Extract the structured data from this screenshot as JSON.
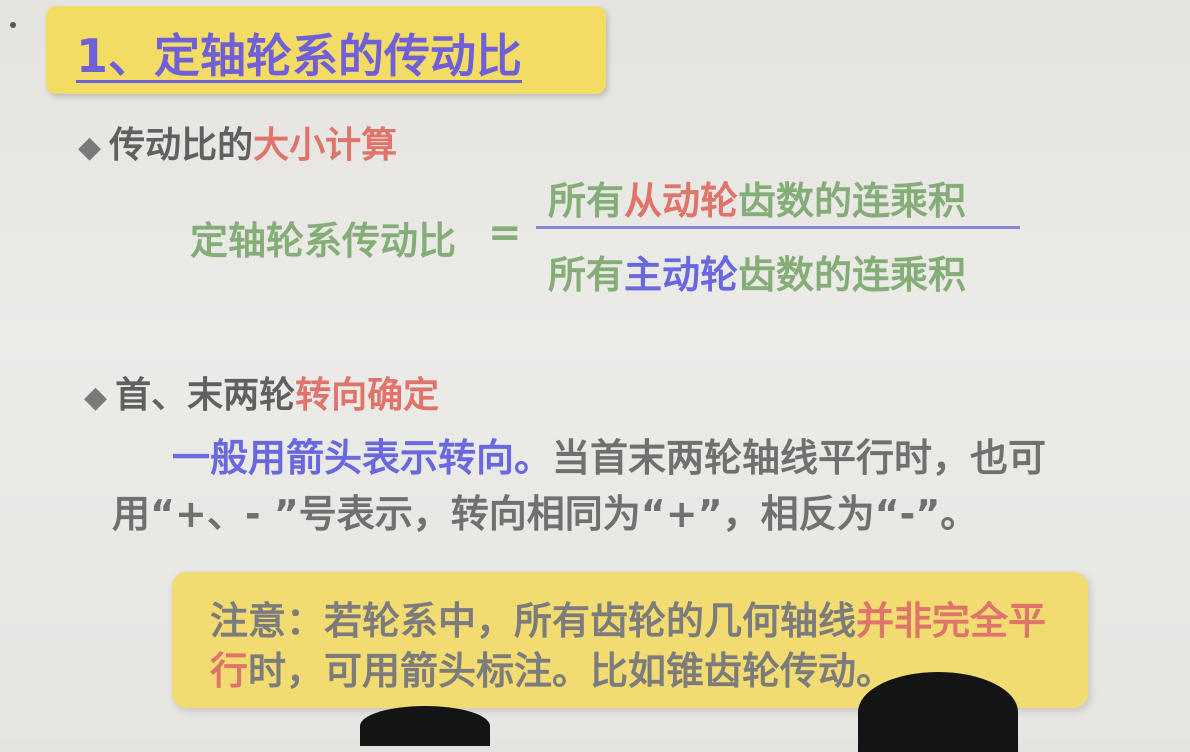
{
  "title": "1、定轴轮系的传动比",
  "section1": {
    "bullet": "◆",
    "prefix": "传动比的",
    "highlight": "大小计算"
  },
  "formula": {
    "left": "定轴轮系传动比",
    "equals": "=",
    "numerator": {
      "pre": "所有",
      "highlight": "从动轮",
      "post": "齿数的连乘积"
    },
    "denominator": {
      "pre": "所有",
      "highlight": "主动轮",
      "post": "齿数的连乘积"
    }
  },
  "section2": {
    "bullet": "◆",
    "prefix": "首、末两轮",
    "highlight": "转向确定"
  },
  "paragraph": {
    "highlight": "一般用箭头表示转向。",
    "rest": "当首末两轮轴线平行时，也可用“+、- ”号表示，转向相同为“+”，相反为“-”。"
  },
  "note": {
    "pre": "注意：若轮系中，所有齿轮的几何轴线",
    "highlight": "并非完全平行",
    "post": "时，可用箭头标注。比如锥齿轮传动。"
  }
}
